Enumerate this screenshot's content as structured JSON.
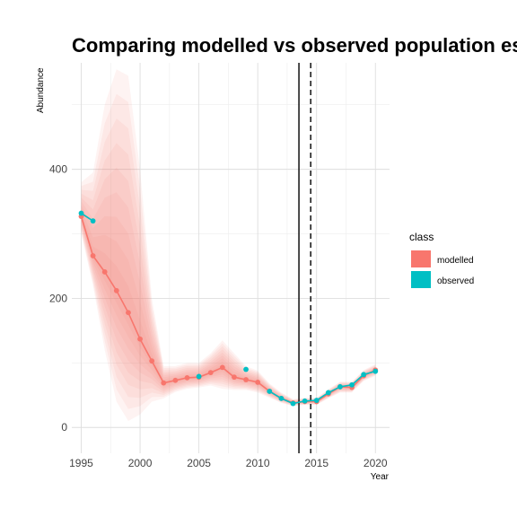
{
  "chart_data": {
    "type": "line",
    "title": "Comparing modelled vs observed population estimat",
    "xlabel": "Year",
    "ylabel": "Abundance",
    "xlim": [
      1994.2,
      2021.2
    ],
    "ylim": [
      -40,
      565
    ],
    "x_ticks": [
      1995,
      2000,
      2005,
      2010,
      2015,
      2020
    ],
    "y_ticks": [
      0,
      200,
      400
    ],
    "grid": true,
    "legend": {
      "title": "class",
      "placement": "right",
      "entries": [
        {
          "label": "modelled",
          "color": "#F8766D"
        },
        {
          "label": "observed",
          "color": "#00BFC4"
        }
      ]
    },
    "vlines": [
      {
        "x": 2013.5,
        "style": "solid"
      },
      {
        "x": 2014.5,
        "style": "dashed"
      }
    ],
    "series": [
      {
        "name": "modelled",
        "color": "#F8766D",
        "x": [
          1995,
          1996,
          1997,
          1998,
          1999,
          2000,
          2001,
          2002,
          2003,
          2004,
          2005,
          2006,
          2007,
          2008,
          2009,
          2010,
          2011,
          2012,
          2013,
          2014,
          2015,
          2016,
          2017,
          2018,
          2019,
          2020
        ],
        "y": [
          327,
          266,
          241,
          212,
          178,
          137,
          103,
          69,
          73,
          77,
          78,
          85,
          93,
          78,
          74,
          70,
          56,
          45,
          38,
          40,
          40,
          52,
          63,
          62,
          80,
          89
        ],
        "band_lower": [
          300,
          220,
          120,
          40,
          10,
          20,
          40,
          45,
          55,
          60,
          62,
          65,
          60,
          58,
          58,
          54,
          46,
          38,
          33,
          35,
          35,
          45,
          54,
          54,
          72,
          80
        ],
        "band_upper": [
          380,
          395,
          500,
          555,
          545,
          400,
          200,
          95,
          95,
          100,
          100,
          115,
          135,
          115,
          95,
          88,
          68,
          54,
          44,
          46,
          46,
          59,
          71,
          71,
          89,
          98
        ]
      },
      {
        "name": "observed",
        "color": "#00BFC4",
        "x": [
          1995,
          1996,
          2005,
          2009,
          2011,
          2012,
          2013,
          2014,
          2015,
          2016,
          2017,
          2018,
          2019,
          2020
        ],
        "y": [
          332,
          320,
          79,
          90,
          56,
          45,
          37,
          41,
          42,
          54,
          63,
          66,
          82,
          87
        ]
      }
    ]
  }
}
